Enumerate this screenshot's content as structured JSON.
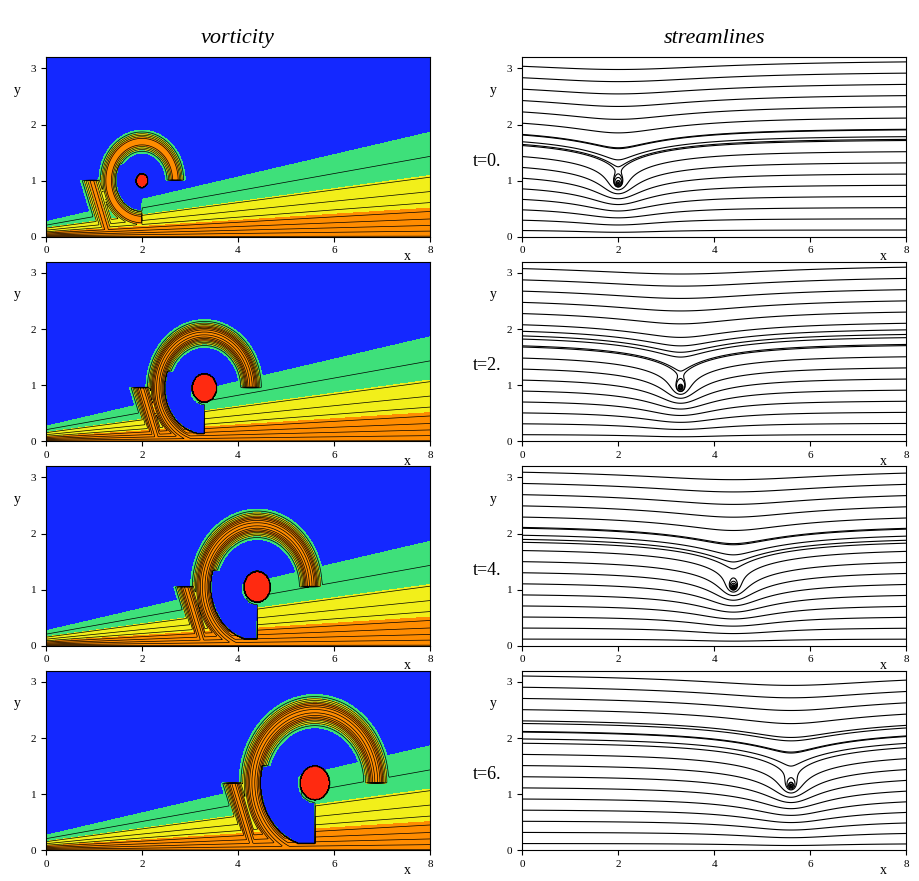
{
  "chart_data": [
    {
      "type": "vorticity",
      "title": "vorticity",
      "xlabel": "x",
      "ylabel": "y",
      "xlim": [
        0,
        8
      ],
      "ylim": [
        0,
        3.2
      ],
      "xticks": [
        0,
        2,
        4,
        6,
        8
      ],
      "yticks": [
        0,
        1,
        2,
        3
      ],
      "vortex_center": [
        2.0,
        1.0
      ],
      "vortex_radius": 0.12
    },
    {
      "type": "streamlines",
      "title": "streamlines",
      "xlabel": "x",
      "ylabel": "y",
      "xlim": [
        0,
        8
      ],
      "ylim": [
        0,
        3.2
      ],
      "xticks": [
        0,
        2,
        4,
        6,
        8
      ],
      "yticks": [
        0,
        1,
        2,
        3
      ],
      "vortex_center": [
        2.0,
        0.95
      ],
      "vortex_radius": 0.12,
      "annotation": "t=0."
    },
    {
      "type": "vorticity",
      "xlabel": "x",
      "ylabel": "y",
      "xlim": [
        0,
        8
      ],
      "ylim": [
        0,
        3.2
      ],
      "xticks": [
        0,
        2,
        4,
        6,
        8
      ],
      "yticks": [
        0,
        1,
        2,
        3
      ],
      "vortex_center": [
        3.3,
        0.95
      ],
      "vortex_radius": 0.25
    },
    {
      "type": "streamlines",
      "xlabel": "x",
      "ylabel": "y",
      "xlim": [
        0,
        8
      ],
      "ylim": [
        0,
        3.2
      ],
      "xticks": [
        0,
        2,
        4,
        6,
        8
      ],
      "yticks": [
        0,
        1,
        2,
        3
      ],
      "vortex_center": [
        3.3,
        0.95
      ],
      "vortex_radius": 0.25,
      "annotation": "t=2."
    },
    {
      "type": "vorticity",
      "xlabel": "x",
      "ylabel": "y",
      "xlim": [
        0,
        8
      ],
      "ylim": [
        0,
        3.2
      ],
      "xticks": [
        0,
        2,
        4,
        6,
        8
      ],
      "yticks": [
        0,
        1,
        2,
        3
      ],
      "vortex_center": [
        4.4,
        1.05
      ],
      "vortex_radius": 0.27
    },
    {
      "type": "streamlines",
      "xlabel": "x",
      "ylabel": "y",
      "xlim": [
        0,
        8
      ],
      "ylim": [
        0,
        3.2
      ],
      "xticks": [
        0,
        2,
        4,
        6,
        8
      ],
      "yticks": [
        0,
        1,
        2,
        3
      ],
      "vortex_center": [
        4.4,
        1.05
      ],
      "vortex_radius": 0.27,
      "annotation": "t=4."
    },
    {
      "type": "vorticity",
      "xlabel": "x",
      "ylabel": "y",
      "xlim": [
        0,
        8
      ],
      "ylim": [
        0,
        3.2
      ],
      "xticks": [
        0,
        2,
        4,
        6,
        8
      ],
      "yticks": [
        0,
        1,
        2,
        3
      ],
      "vortex_center": [
        5.6,
        1.2
      ],
      "vortex_radius": 0.3
    },
    {
      "type": "streamlines",
      "xlabel": "x",
      "ylabel": "y",
      "xlim": [
        0,
        8
      ],
      "ylim": [
        0,
        3.2
      ],
      "xticks": [
        0,
        2,
        4,
        6,
        8
      ],
      "yticks": [
        0,
        1,
        2,
        3
      ],
      "vortex_center": [
        5.6,
        1.15
      ],
      "vortex_radius": 0.3,
      "annotation": "t=6."
    }
  ]
}
